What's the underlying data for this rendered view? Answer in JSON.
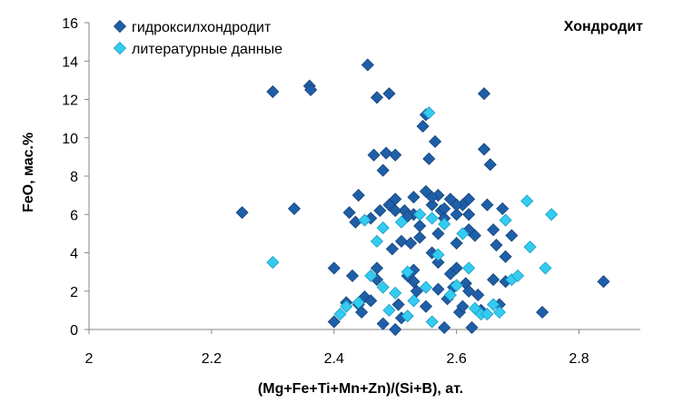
{
  "chart_data": {
    "type": "scatter",
    "title": "Хондродит",
    "xlabel": "(Mg+Fe+Ti+Mn+Zn)/(Si+B), ат.",
    "ylabel": "FeO, мас.%",
    "xlim": [
      2,
      2.9
    ],
    "ylim": [
      0,
      16
    ],
    "xticks": [
      "2",
      "2.2",
      "2.4",
      "2.6",
      "2.8"
    ],
    "yticks": [
      "0",
      "2",
      "4",
      "6",
      "8",
      "10",
      "12",
      "14",
      "16"
    ],
    "grid": false,
    "legend_position": "top-left",
    "series": [
      {
        "name": "гидроксилхондродит",
        "color": "#1f5fa8",
        "marker": "diamond",
        "points": [
          [
            2.25,
            6.1
          ],
          [
            2.3,
            12.4
          ],
          [
            2.335,
            6.3
          ],
          [
            2.36,
            12.7
          ],
          [
            2.362,
            12.5
          ],
          [
            2.4,
            3.2
          ],
          [
            2.4,
            0.4
          ],
          [
            2.42,
            1.4
          ],
          [
            2.425,
            6.1
          ],
          [
            2.43,
            2.8
          ],
          [
            2.435,
            5.6
          ],
          [
            2.44,
            1.3
          ],
          [
            2.445,
            0.9
          ],
          [
            2.45,
            1.7
          ],
          [
            2.455,
            13.8
          ],
          [
            2.46,
            1.5
          ],
          [
            2.46,
            5.8
          ],
          [
            2.465,
            9.1
          ],
          [
            2.47,
            12.1
          ],
          [
            2.47,
            3.2
          ],
          [
            2.475,
            6.2
          ],
          [
            2.48,
            8.3
          ],
          [
            2.485,
            9.2
          ],
          [
            2.49,
            12.3
          ],
          [
            2.49,
            6.5
          ],
          [
            2.495,
            4.2
          ],
          [
            2.5,
            9.1
          ],
          [
            2.5,
            6.8
          ],
          [
            2.505,
            1.3
          ],
          [
            2.51,
            0.6
          ],
          [
            2.515,
            6.2
          ],
          [
            2.52,
            2.8
          ],
          [
            2.525,
            4.5
          ],
          [
            2.53,
            6.0
          ],
          [
            2.53,
            3.1
          ],
          [
            2.535,
            2.0
          ],
          [
            2.54,
            4.8
          ],
          [
            2.545,
            10.6
          ],
          [
            2.55,
            7.2
          ],
          [
            2.55,
            11.2
          ],
          [
            2.555,
            8.9
          ],
          [
            2.56,
            6.5
          ],
          [
            2.56,
            4.0
          ],
          [
            2.565,
            9.8
          ],
          [
            2.57,
            7.0
          ],
          [
            2.57,
            3.5
          ],
          [
            2.575,
            6.2
          ],
          [
            2.58,
            5.8
          ],
          [
            2.585,
            1.6
          ],
          [
            2.59,
            6.8
          ],
          [
            2.595,
            2.2
          ],
          [
            2.6,
            6.0
          ],
          [
            2.6,
            4.5
          ],
          [
            2.605,
            0.9
          ],
          [
            2.61,
            6.5
          ],
          [
            2.615,
            2.4
          ],
          [
            2.62,
            6.8
          ],
          [
            2.62,
            5.2
          ],
          [
            2.625,
            0.1
          ],
          [
            2.63,
            4.9
          ],
          [
            2.635,
            1.8
          ],
          [
            2.645,
            12.3
          ],
          [
            2.645,
            9.4
          ],
          [
            2.65,
            6.5
          ],
          [
            2.655,
            8.6
          ],
          [
            2.66,
            5.2
          ],
          [
            2.665,
            4.4
          ],
          [
            2.67,
            1.3
          ],
          [
            2.675,
            6.3
          ],
          [
            2.68,
            2.5
          ],
          [
            2.69,
            4.9
          ],
          [
            2.74,
            0.9
          ],
          [
            2.84,
            2.5
          ],
          [
            2.44,
            7.0
          ],
          [
            2.52,
            5.9
          ],
          [
            2.54,
            5.4
          ],
          [
            2.56,
            6.9
          ],
          [
            2.58,
            6.3
          ],
          [
            2.6,
            6.5
          ],
          [
            2.62,
            6.0
          ],
          [
            2.5,
            6.2
          ],
          [
            2.53,
            6.9
          ],
          [
            2.57,
            5.0
          ],
          [
            2.59,
            2.9
          ],
          [
            2.61,
            1.2
          ],
          [
            2.48,
            0.3
          ],
          [
            2.5,
            0.0
          ],
          [
            2.58,
            0.1
          ],
          [
            2.55,
            1.2
          ],
          [
            2.53,
            2.5
          ],
          [
            2.47,
            2.6
          ],
          [
            2.51,
            4.6
          ],
          [
            2.64,
            1.0
          ],
          [
            2.66,
            2.6
          ],
          [
            2.68,
            3.8
          ],
          [
            2.6,
            3.2
          ],
          [
            2.62,
            2.0
          ],
          [
            2.57,
            2.1
          ]
        ]
      },
      {
        "name": "литературные данные",
        "color": "#33ccf0",
        "marker": "diamond",
        "points": [
          [
            2.3,
            3.5
          ],
          [
            2.41,
            0.8
          ],
          [
            2.42,
            1.2
          ],
          [
            2.45,
            5.7
          ],
          [
            2.46,
            2.8
          ],
          [
            2.47,
            4.6
          ],
          [
            2.48,
            2.2
          ],
          [
            2.49,
            1.0
          ],
          [
            2.5,
            1.9
          ],
          [
            2.51,
            5.6
          ],
          [
            2.52,
            0.7
          ],
          [
            2.53,
            1.5
          ],
          [
            2.54,
            6.0
          ],
          [
            2.55,
            2.2
          ],
          [
            2.555,
            11.3
          ],
          [
            2.56,
            5.8
          ],
          [
            2.57,
            3.9
          ],
          [
            2.58,
            5.5
          ],
          [
            2.59,
            1.8
          ],
          [
            2.6,
            2.3
          ],
          [
            2.61,
            5.0
          ],
          [
            2.62,
            3.2
          ],
          [
            2.63,
            1.1
          ],
          [
            2.64,
            0.8
          ],
          [
            2.65,
            0.8
          ],
          [
            2.66,
            1.3
          ],
          [
            2.67,
            0.9
          ],
          [
            2.68,
            5.7
          ],
          [
            2.69,
            2.6
          ],
          [
            2.7,
            2.8
          ],
          [
            2.715,
            6.7
          ],
          [
            2.72,
            4.3
          ],
          [
            2.745,
            3.2
          ],
          [
            2.755,
            6.0
          ],
          [
            2.56,
            0.4
          ],
          [
            2.44,
            1.4
          ],
          [
            2.52,
            3.0
          ],
          [
            2.48,
            5.3
          ]
        ]
      }
    ]
  }
}
